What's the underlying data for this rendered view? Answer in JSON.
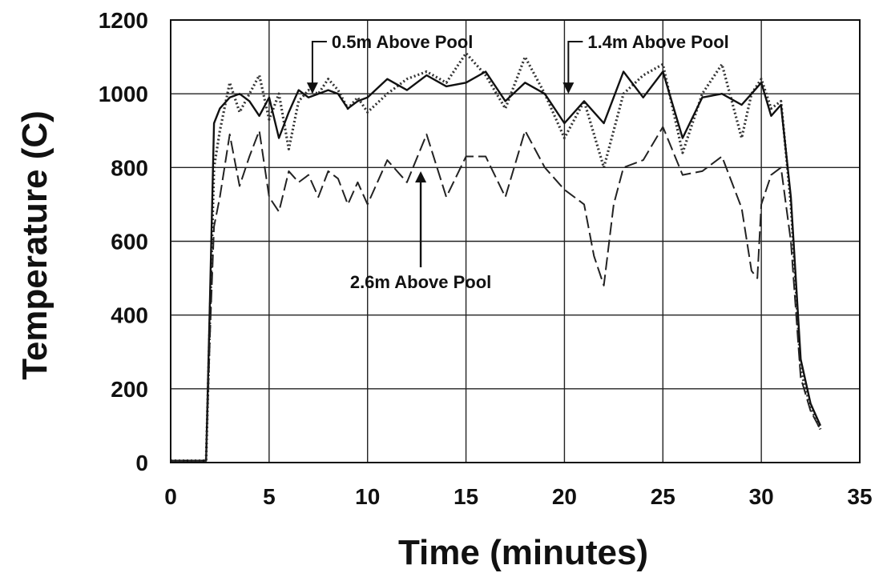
{
  "chart_data": {
    "type": "line",
    "xlabel": "Time (minutes)",
    "ylabel": "Temperature (C)",
    "xlim": [
      0,
      35
    ],
    "ylim": [
      0,
      1200
    ],
    "xticks": [
      0,
      5,
      10,
      15,
      20,
      25,
      30,
      35
    ],
    "yticks": [
      0,
      200,
      400,
      600,
      800,
      1000,
      1200
    ],
    "grid": true,
    "legend": "none",
    "series": [
      {
        "name": "0.5m Above Pool",
        "style": "dotted",
        "color": "#333333",
        "x": [
          0,
          1.8,
          2.0,
          2.2,
          2.5,
          3.0,
          3.5,
          4.0,
          4.5,
          5.0,
          5.5,
          6.0,
          6.5,
          7.0,
          7.5,
          8.0,
          8.5,
          9.0,
          9.5,
          10.0,
          11.0,
          12.0,
          13.0,
          14.0,
          15.0,
          16.0,
          17.0,
          18.0,
          19.0,
          20.0,
          21.0,
          22.0,
          23.0,
          24.0,
          25.0,
          26.0,
          27.0,
          28.0,
          29.0,
          29.5,
          30.0,
          30.5,
          31.0,
          31.5,
          32.0,
          32.5,
          33.0
        ],
        "y": [
          5,
          5,
          400,
          800,
          900,
          1030,
          950,
          1000,
          1050,
          930,
          1000,
          850,
          980,
          1010,
          1000,
          1040,
          1010,
          960,
          990,
          950,
          1000,
          1040,
          1060,
          1030,
          1110,
          1050,
          960,
          1100,
          1000,
          880,
          980,
          800,
          1000,
          1050,
          1080,
          840,
          1000,
          1080,
          880,
          1000,
          1040,
          960,
          980,
          700,
          250,
          150,
          90
        ]
      },
      {
        "name": "1.4m Above Pool",
        "style": "solid",
        "color": "#111111",
        "x": [
          0,
          1.8,
          2.0,
          2.2,
          2.5,
          3.0,
          3.5,
          4.0,
          4.5,
          5.0,
          5.5,
          6.0,
          6.5,
          7.0,
          7.5,
          8.0,
          8.5,
          9.0,
          9.5,
          10.0,
          11.0,
          12.0,
          13.0,
          14.0,
          15.0,
          16.0,
          17.0,
          18.0,
          19.0,
          20.0,
          21.0,
          22.0,
          23.0,
          24.0,
          25.0,
          26.0,
          27.0,
          28.0,
          29.0,
          29.5,
          30.0,
          30.5,
          31.0,
          31.5,
          32.0,
          32.5,
          33.0
        ],
        "y": [
          5,
          5,
          450,
          920,
          960,
          990,
          1000,
          980,
          940,
          990,
          880,
          950,
          1010,
          990,
          1000,
          1010,
          1000,
          960,
          980,
          990,
          1040,
          1010,
          1050,
          1020,
          1030,
          1060,
          980,
          1030,
          1000,
          920,
          980,
          920,
          1060,
          990,
          1060,
          880,
          990,
          1000,
          970,
          1000,
          1030,
          940,
          970,
          720,
          280,
          160,
          100
        ]
      },
      {
        "name": "2.6m Above Pool",
        "style": "dashed",
        "color": "#222222",
        "x": [
          0,
          1.8,
          2.0,
          2.2,
          2.5,
          3.0,
          3.5,
          4.0,
          4.5,
          5.0,
          5.5,
          6.0,
          6.5,
          7.0,
          7.5,
          8.0,
          8.5,
          9.0,
          9.5,
          10.0,
          11.0,
          12.0,
          13.0,
          14.0,
          15.0,
          16.0,
          17.0,
          18.0,
          19.0,
          20.0,
          21.0,
          21.5,
          22.0,
          22.5,
          23.0,
          24.0,
          25.0,
          26.0,
          27.0,
          28.0,
          29.0,
          29.5,
          29.8,
          30.0,
          30.5,
          31.0,
          31.5,
          32.0,
          32.5,
          33.0
        ],
        "y": [
          5,
          5,
          350,
          640,
          720,
          890,
          750,
          830,
          900,
          720,
          680,
          790,
          760,
          780,
          720,
          790,
          770,
          700,
          760,
          700,
          820,
          760,
          890,
          720,
          830,
          830,
          720,
          900,
          800,
          740,
          700,
          560,
          480,
          700,
          800,
          820,
          910,
          780,
          790,
          830,
          690,
          520,
          500,
          700,
          780,
          800,
          600,
          230,
          140,
          90
        ]
      }
    ],
    "annotations": [
      {
        "text": "0.5m Above Pool",
        "arrow_to": [
          7.2,
          1000
        ]
      },
      {
        "text": "1.4m Above Pool",
        "arrow_to": [
          20.2,
          1000
        ]
      },
      {
        "text": "2.6m Above Pool",
        "arrow_to": [
          12.7,
          790
        ]
      }
    ]
  }
}
